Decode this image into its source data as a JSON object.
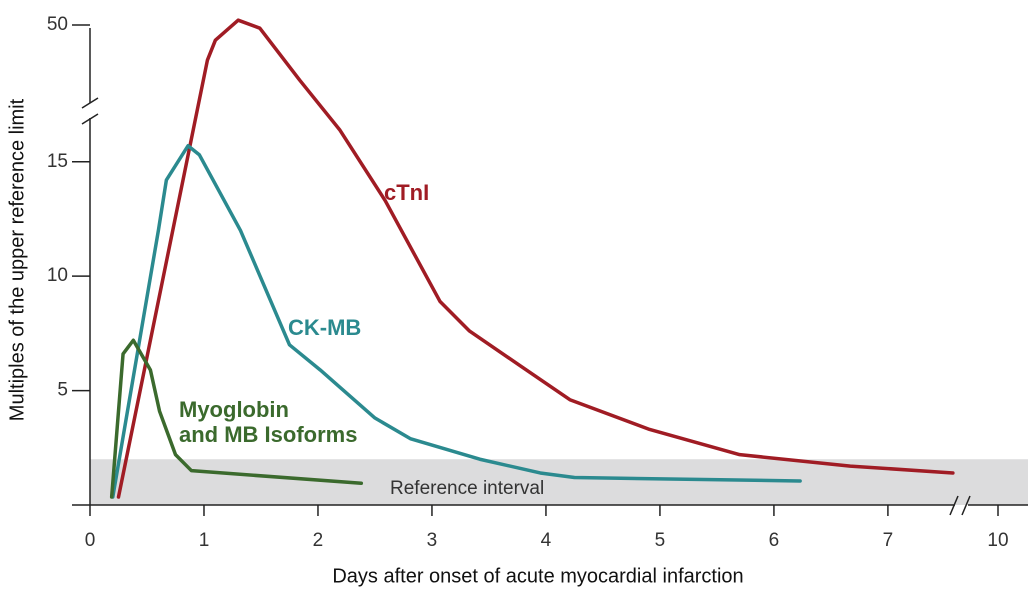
{
  "chart_data": {
    "type": "line",
    "xlabel": "Days after onset of acute myocardial infarction",
    "ylabel": "Multiples of the upper reference limit",
    "xlim": [
      0,
      10
    ],
    "xbreak": [
      7.65,
      9.75
    ],
    "ylim": [
      0,
      50
    ],
    "ybreak": [
      17,
      40
    ],
    "xticks": [
      0,
      1,
      2,
      3,
      4,
      5,
      6,
      7,
      10
    ],
    "yticks": [
      5,
      10,
      15,
      50
    ],
    "reference_band": {
      "label": "Reference interval",
      "range": [
        0,
        2
      ],
      "color": "#dcdcdd"
    },
    "series": [
      {
        "name": "cTnI",
        "color": "#a01c24",
        "x": [
          0.25,
          1.03,
          1.1,
          1.3,
          1.49,
          1.84,
          2.19,
          2.59,
          3.07,
          3.33,
          3.77,
          4.21,
          4.91,
          5.7,
          6.67,
          7.57
        ],
        "values": [
          0.35,
          45.6,
          48.1,
          50.6,
          49.6,
          43.1,
          16.4,
          13.3,
          8.9,
          7.6,
          6.1,
          4.6,
          3.3,
          2.2,
          1.7,
          1.4
        ]
      },
      {
        "name": "CK-MB",
        "color": "#2b8a8f",
        "x": [
          0.2,
          0.6,
          0.67,
          0.86,
          0.96,
          1.32,
          1.75,
          2.02,
          2.5,
          2.81,
          3.42,
          3.95,
          4.25,
          6.23
        ],
        "values": [
          0.35,
          12.0,
          14.2,
          15.7,
          15.3,
          12.0,
          7.0,
          5.9,
          3.8,
          2.9,
          2.0,
          1.4,
          1.2,
          1.05
        ]
      },
      {
        "name": "Myoglobin\nand MB Isoforms",
        "color": "#3b6a2d",
        "x": [
          0.19,
          0.29,
          0.38,
          0.53,
          0.61,
          0.75,
          0.89,
          2.38
        ],
        "values": [
          0.35,
          6.6,
          7.2,
          5.9,
          4.1,
          2.2,
          1.5,
          0.95
        ]
      }
    ]
  }
}
